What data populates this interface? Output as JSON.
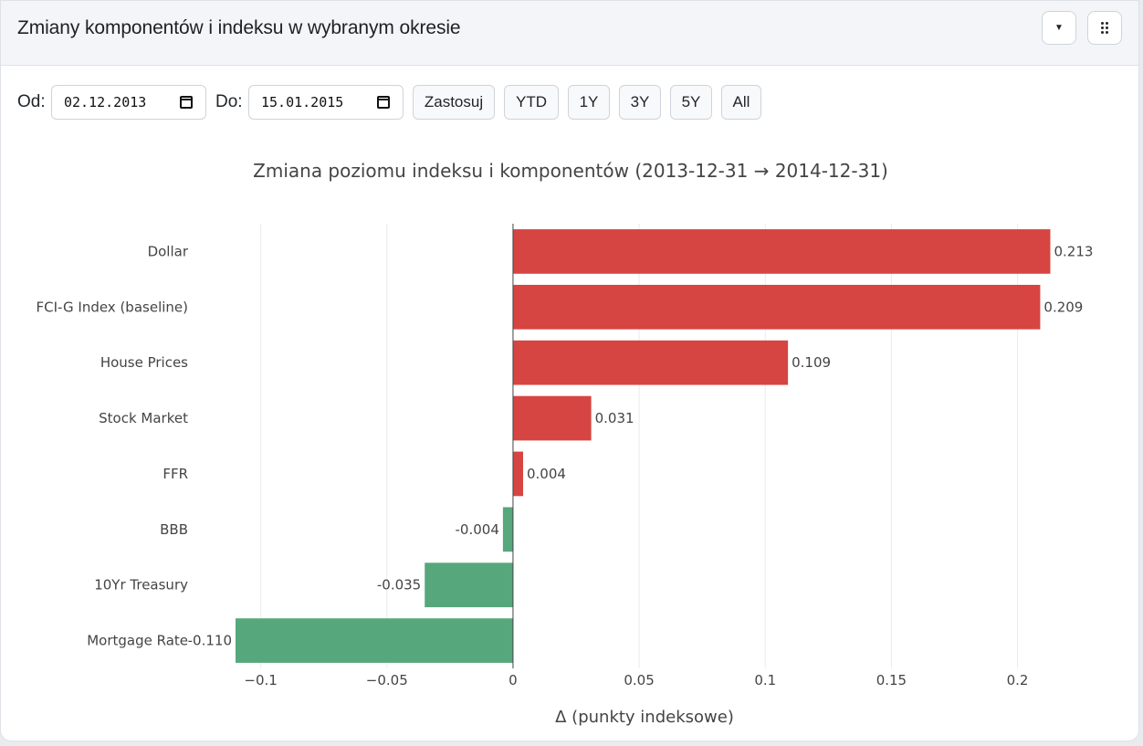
{
  "header": {
    "title": "Zmiany komponentów i indeksu w wybranym okresie",
    "caret_icon": "caret-down-icon",
    "grip_icon": "grip-icon"
  },
  "controls": {
    "from_label": "Od:",
    "from_value": "02.12.2013",
    "to_label": "Do:",
    "to_value": "15.01.2015",
    "apply_label": "Zastosuj",
    "ranges": [
      "YTD",
      "1Y",
      "3Y",
      "5Y",
      "All"
    ]
  },
  "colors": {
    "positive": "#d64541",
    "negative": "#56a77b",
    "grid": "#ebebeb",
    "zeroline": "#444444"
  },
  "chart_data": {
    "type": "bar",
    "orientation": "horizontal",
    "title": "Zmiana poziomu indeksu i komponentów (2013-12-31 → 2014-12-31)",
    "xlabel": "Δ (punkty indeksowe)",
    "ylabel": "",
    "xlim": [
      -0.11,
      0.215
    ],
    "grid": true,
    "categories": [
      "Dollar",
      "FCI-G Index (baseline)",
      "House Prices",
      "Stock Market",
      "FFR",
      "BBB",
      "10Yr Treasury",
      "Mortgage Rate"
    ],
    "values": [
      0.213,
      0.209,
      0.109,
      0.031,
      0.004,
      -0.004,
      -0.035,
      -0.11
    ],
    "value_labels": [
      "0.213",
      "0.209",
      "0.109",
      "0.031",
      "0.004",
      "-0.004",
      "-0.035",
      "-0.110"
    ],
    "xticks": [
      -0.1,
      -0.05,
      0,
      0.05,
      0.1,
      0.15,
      0.2
    ],
    "xtick_labels": [
      "−0.1",
      "−0.05",
      "0",
      "0.05",
      "0.1",
      "0.15",
      "0.2"
    ]
  }
}
